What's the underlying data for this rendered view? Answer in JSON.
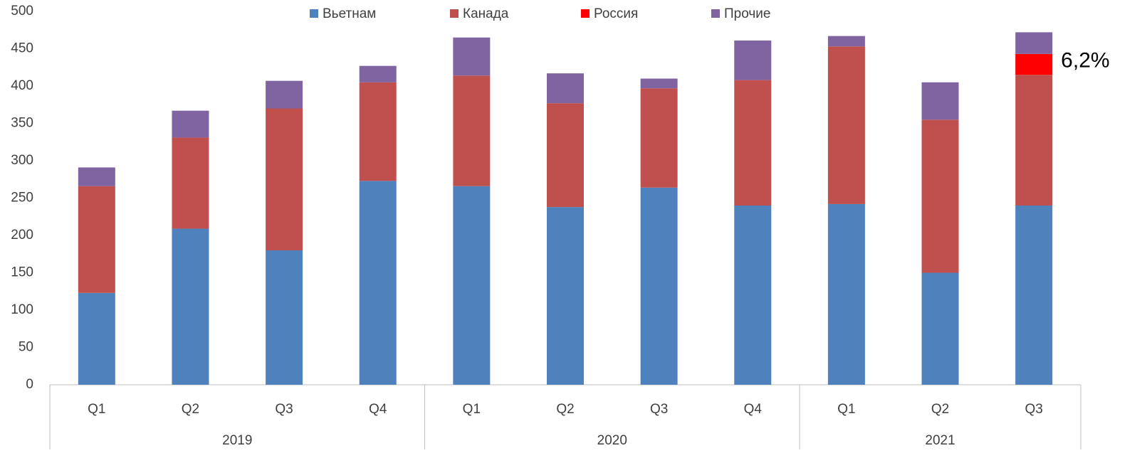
{
  "chart_data": {
    "type": "stacked_bar",
    "categories": [
      "Q1",
      "Q2",
      "Q3",
      "Q4",
      "Q1",
      "Q2",
      "Q3",
      "Q4",
      "Q1",
      "Q2",
      "Q3"
    ],
    "groups": [
      "2019",
      "2020",
      "2021"
    ],
    "group_sizes": [
      4,
      4,
      3
    ],
    "series": [
      {
        "name": "Вьетнам",
        "color": "#4f81bd",
        "values": [
          123,
          209,
          180,
          273,
          266,
          238,
          264,
          240,
          242,
          150,
          240
        ]
      },
      {
        "name": "Канада",
        "color": "#c0504d",
        "values": [
          143,
          122,
          190,
          132,
          148,
          139,
          133,
          168,
          211,
          205,
          175
        ]
      },
      {
        "name": "Россия",
        "color": "#ff0000",
        "values": [
          null,
          null,
          null,
          null,
          null,
          null,
          null,
          null,
          null,
          null,
          28
        ]
      },
      {
        "name": "Прочие",
        "color": "#8064a2",
        "values": [
          25,
          36,
          37,
          22,
          51,
          40,
          13,
          53,
          14,
          50,
          29
        ]
      }
    ],
    "annotations": [
      {
        "text": "6,2%",
        "series": 2,
        "index": 10
      }
    ],
    "ylim": [
      0,
      500
    ],
    "yticks": [
      0,
      50,
      100,
      150,
      200,
      250,
      300,
      350,
      400,
      450,
      500
    ],
    "grid": false,
    "legend": "top"
  }
}
